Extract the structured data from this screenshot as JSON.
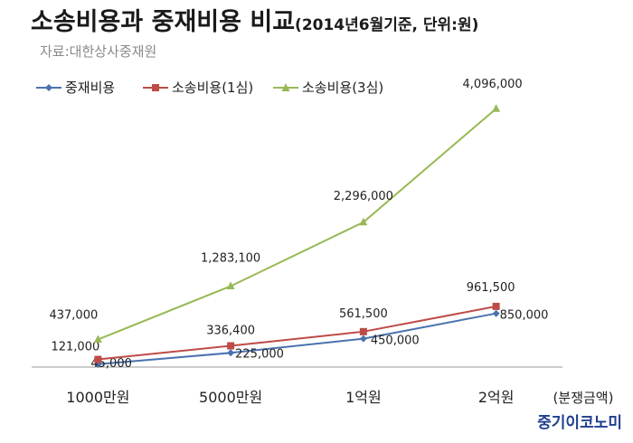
{
  "header": {
    "title": "소송비용과 중재비용 비교",
    "subtitle": "(2014년6월기준, 단위:원)",
    "source": "자료:대한상사중재원"
  },
  "brand": "중기이코노미",
  "chart_data": {
    "type": "line",
    "categories": [
      "1000만원",
      "5000만원",
      "1억원",
      "2억원"
    ],
    "x_unit_label": "(분쟁금액)",
    "ylim": [
      0,
      4500000
    ],
    "grid": false,
    "legend_position": "top-left",
    "series": [
      {
        "name": "중재비용",
        "color": "#4a72b0",
        "marker": "diamond",
        "values": [
          45000,
          225000,
          450000,
          850000
        ],
        "labels": [
          "45,000",
          "225,000",
          "450,000",
          "850,000"
        ]
      },
      {
        "name": "소송비용(1심)",
        "color": "#be4b48",
        "marker": "square",
        "values": [
          121000,
          336400,
          561500,
          961500
        ],
        "labels": [
          "121,000",
          "336,400",
          "561,500",
          "961,500"
        ]
      },
      {
        "name": "소송비용(3심)",
        "color": "#98b954",
        "marker": "triangle",
        "values": [
          437000,
          1283100,
          2296000,
          4096000
        ],
        "labels": [
          "437,000",
          "1,283,100",
          "2,296,000",
          "4,096,000"
        ]
      }
    ]
  }
}
